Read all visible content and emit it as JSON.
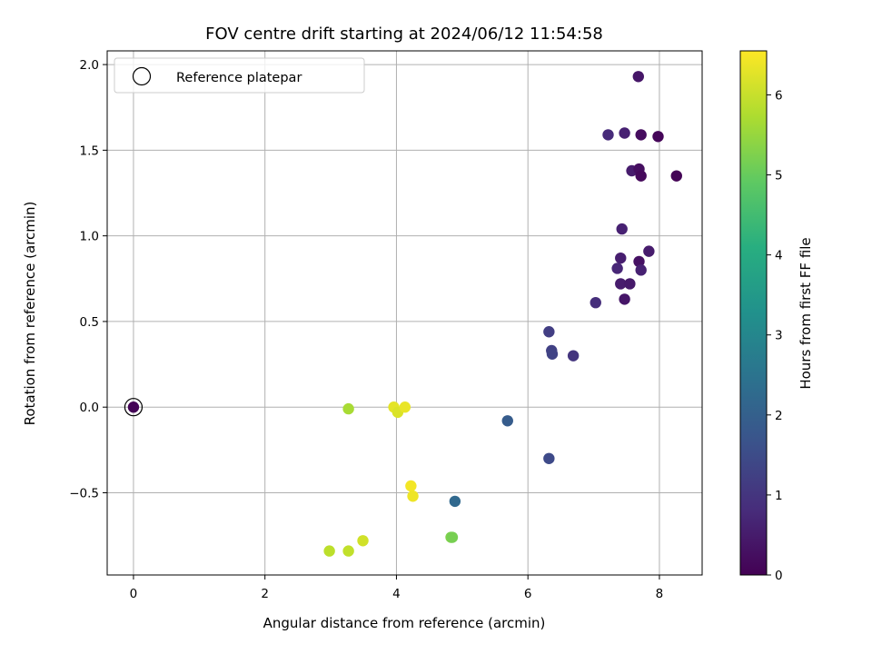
{
  "chart_data": {
    "type": "scatter",
    "title": "FOV centre drift starting at 2024/06/12 11:54:58",
    "xlabel": "Angular distance from reference (arcmin)",
    "ylabel": "Rotation from reference (arcmin)",
    "xlim": [
      -0.4,
      8.65
    ],
    "ylim": [
      -0.98,
      2.08
    ],
    "xticks": [
      0,
      2,
      4,
      6,
      8
    ],
    "yticks": [
      -0.5,
      0.0,
      0.5,
      1.0,
      1.5,
      2.0
    ],
    "xtick_labels": [
      "0",
      "2",
      "4",
      "6",
      "8"
    ],
    "ytick_labels": [
      "−0.5",
      "0.0",
      "0.5",
      "1.0",
      "1.5",
      "2.0"
    ],
    "grid": true,
    "legend": {
      "position": "top-left",
      "entries": [
        "Reference platepar"
      ]
    },
    "reference_point": {
      "x": 0,
      "y": 0
    },
    "colorbar": {
      "label": "Hours from first FF file",
      "colormap": "viridis",
      "range": [
        0,
        6.55
      ],
      "ticks": [
        0,
        1,
        2,
        3,
        4,
        5,
        6
      ],
      "tick_labels": [
        "0",
        "1",
        "2",
        "3",
        "4",
        "5",
        "6"
      ]
    },
    "points": [
      {
        "x": 0.0,
        "y": 0.0,
        "h": 0.05
      },
      {
        "x": 7.68,
        "y": 1.93,
        "h": 0.4
      },
      {
        "x": 7.22,
        "y": 1.59,
        "h": 0.8
      },
      {
        "x": 7.47,
        "y": 1.6,
        "h": 0.6
      },
      {
        "x": 7.72,
        "y": 1.59,
        "h": 0.2
      },
      {
        "x": 7.98,
        "y": 1.58,
        "h": 0.1
      },
      {
        "x": 7.58,
        "y": 1.38,
        "h": 0.5
      },
      {
        "x": 7.69,
        "y": 1.39,
        "h": 0.25
      },
      {
        "x": 7.72,
        "y": 1.35,
        "h": 0.15
      },
      {
        "x": 8.26,
        "y": 1.35,
        "h": 0.05
      },
      {
        "x": 7.43,
        "y": 1.04,
        "h": 0.6
      },
      {
        "x": 7.84,
        "y": 0.91,
        "h": 0.5
      },
      {
        "x": 7.41,
        "y": 0.87,
        "h": 0.55
      },
      {
        "x": 7.69,
        "y": 0.85,
        "h": 0.3
      },
      {
        "x": 7.36,
        "y": 0.81,
        "h": 0.7
      },
      {
        "x": 7.72,
        "y": 0.8,
        "h": 0.6
      },
      {
        "x": 7.41,
        "y": 0.72,
        "h": 0.5
      },
      {
        "x": 7.55,
        "y": 0.72,
        "h": 0.45
      },
      {
        "x": 7.47,
        "y": 0.63,
        "h": 0.4
      },
      {
        "x": 7.03,
        "y": 0.61,
        "h": 0.85
      },
      {
        "x": 6.32,
        "y": 0.44,
        "h": 1.2
      },
      {
        "x": 6.36,
        "y": 0.33,
        "h": 1.25
      },
      {
        "x": 6.37,
        "y": 0.31,
        "h": 1.3
      },
      {
        "x": 6.69,
        "y": 0.3,
        "h": 1.0
      },
      {
        "x": 5.69,
        "y": -0.08,
        "h": 1.9
      },
      {
        "x": 6.32,
        "y": -0.3,
        "h": 1.45
      },
      {
        "x": 4.89,
        "y": -0.55,
        "h": 2.2
      },
      {
        "x": 3.27,
        "y": -0.01,
        "h": 5.7
      },
      {
        "x": 3.96,
        "y": 0.0,
        "h": 6.3
      },
      {
        "x": 4.02,
        "y": -0.03,
        "h": 6.2
      },
      {
        "x": 4.13,
        "y": 0.0,
        "h": 6.35
      },
      {
        "x": 4.22,
        "y": -0.46,
        "h": 6.45
      },
      {
        "x": 4.25,
        "y": -0.52,
        "h": 6.4
      },
      {
        "x": 4.83,
        "y": -0.76,
        "h": 5.3
      },
      {
        "x": 4.85,
        "y": -0.76,
        "h": 5.2
      },
      {
        "x": 3.49,
        "y": -0.78,
        "h": 6.1
      },
      {
        "x": 2.98,
        "y": -0.84,
        "h": 5.9
      },
      {
        "x": 3.27,
        "y": -0.84,
        "h": 5.95
      }
    ]
  }
}
